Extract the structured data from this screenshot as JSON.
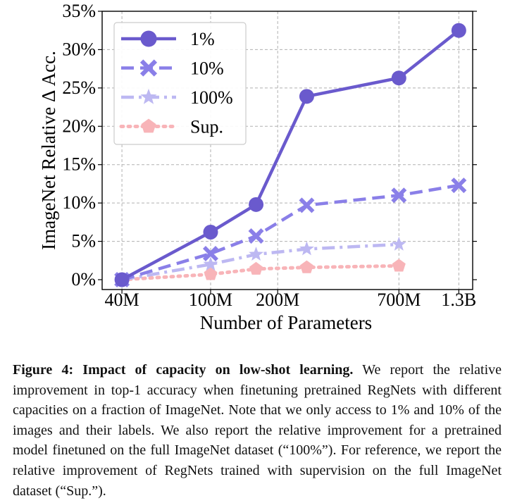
{
  "chart_data": {
    "type": "line",
    "title": "",
    "xlabel": "Number of Parameters",
    "ylabel": "ImageNet Relative Δ Acc.",
    "x_scale": "log",
    "categories": [
      "40M",
      "100M",
      "200M",
      "700M",
      "1.3B"
    ],
    "x_ticks": [
      40,
      100,
      200,
      700,
      1300
    ],
    "ylim": [
      0,
      35
    ],
    "y_ticks": [
      0,
      5,
      10,
      15,
      20,
      25,
      30,
      35
    ],
    "y_tick_labels": [
      "0%",
      "5%",
      "10%",
      "15%",
      "20%",
      "25%",
      "30%",
      "35%"
    ],
    "grid": true,
    "legend_position": "top-left",
    "series": [
      {
        "name": "1%",
        "style": "solid",
        "marker": "circle",
        "color": "#6A5ACD",
        "x": [
          40,
          100,
          160,
          270,
          700,
          1300
        ],
        "values": [
          0,
          6.2,
          9.8,
          23.9,
          26.3,
          32.5
        ]
      },
      {
        "name": "10%",
        "style": "dashed",
        "marker": "x",
        "color": "#8A7FE8",
        "x": [
          40,
          100,
          160,
          270,
          700,
          1300
        ],
        "values": [
          0,
          3.4,
          5.7,
          9.7,
          11.0,
          12.3
        ]
      },
      {
        "name": "100%",
        "style": "dashdot",
        "marker": "star",
        "color": "#BDB8F2",
        "x": [
          40,
          100,
          160,
          270,
          700
        ],
        "values": [
          0,
          2.0,
          3.3,
          4.0,
          4.6
        ]
      },
      {
        "name": "Sup.",
        "style": "dotted",
        "marker": "pentagon",
        "color": "#F8B4B8",
        "x": [
          40,
          100,
          160,
          270,
          700
        ],
        "values": [
          0,
          0.7,
          1.4,
          1.6,
          1.8
        ]
      }
    ]
  },
  "caption": {
    "label": "Figure 4:",
    "title": "Impact of capacity on low-shot learning.",
    "body": "We report the relative improvement in top-1 accuracy when finetuning pretrained RegNets with different capacities on a fraction of ImageNet. Note that we only access to 1% and 10% of the images and their labels. We also report the relative improvement for a pretrained model finetuned on the full ImageNet dataset (“100%”). For reference, we report the relative improvement of RegNets trained with supervision on the full ImageNet dataset (“Sup.”)."
  }
}
